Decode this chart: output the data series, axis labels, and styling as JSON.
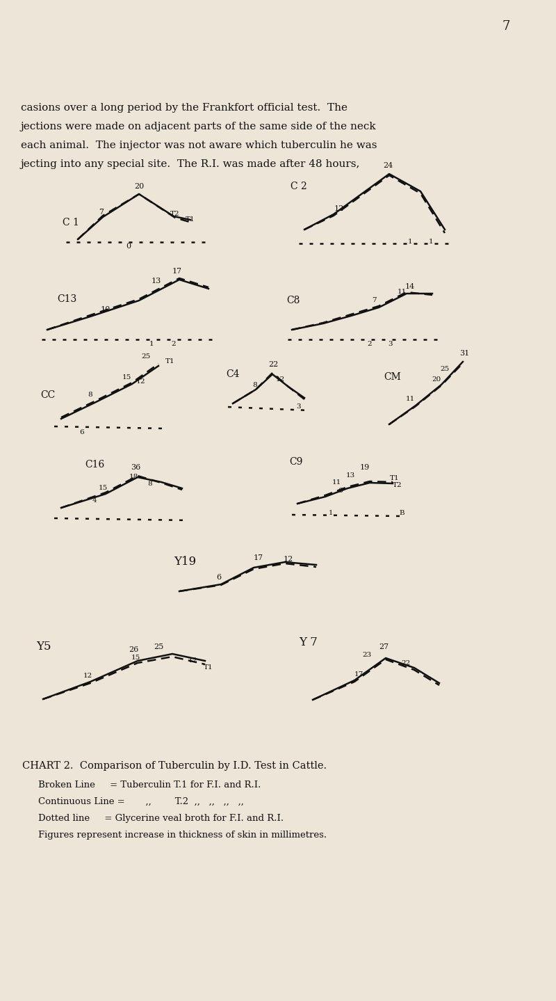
{
  "bg": "#ede5d8",
  "fg": "#111111",
  "page_num": "7",
  "header": [
    "casions over a long period by the Frankfort official test.  The",
    "jections were made on adjacent parts of the same side of the neck",
    "each animal.  The injector was not aware which tuberculin he was",
    "jecting into any special site.  The R.I. was made after 48 hours,"
  ],
  "caption": "CHART 2.  Comparison of Tuberculin by I.D. Test in Cattle.",
  "legend": [
    "Broken Line     = Tuberculin T.1 for F.I. and R.I.",
    "Continuous Line =       ,,        T.2  ,,   ,,   ,,   ,,",
    "Dotted line     = Glycerine veal broth for F.I. and R.I.",
    "Figures represent increase in thickness of skin in millimetres."
  ]
}
